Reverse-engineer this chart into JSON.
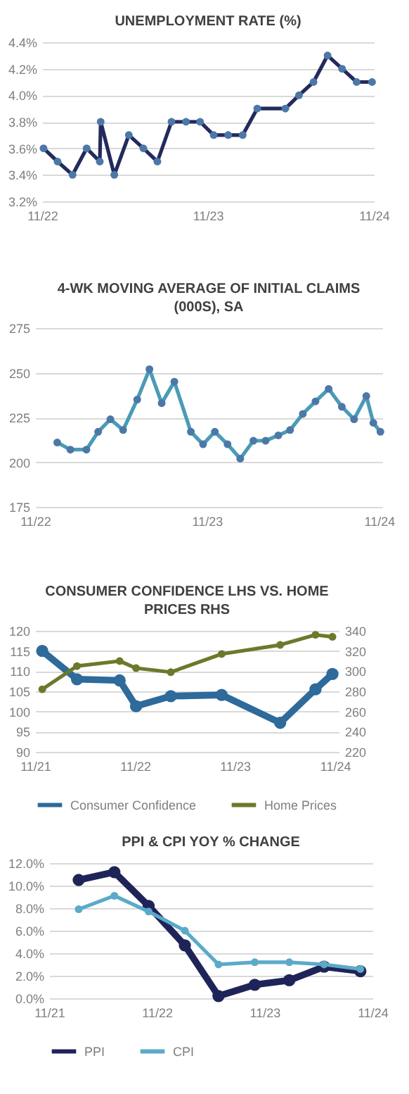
{
  "chart_data": [
    {
      "type": "line",
      "title": "UNEMPLOYMENT RATE (%)",
      "x": [
        "2022-11-04",
        "2022-12-05",
        "2023-01-07",
        "2023-02-07",
        "2023-03-08",
        "2023-03-10",
        "2023-04-09",
        "2023-05-11",
        "2023-06-12",
        "2023-07-13",
        "2023-08-13",
        "2023-09-14",
        "2023-10-15",
        "2023-11-14",
        "2023-12-16",
        "2024-01-17",
        "2024-02-18",
        "2024-04-20",
        "2024-05-20",
        "2024-06-21",
        "2024-07-22",
        "2024-08-23",
        "2024-09-24",
        "2024-10-28"
      ],
      "series": [
        {
          "color": "#232a5c",
          "values": [
            3.6,
            3.5,
            3.4,
            3.6,
            3.5,
            3.8,
            3.4,
            3.7,
            3.6,
            3.5,
            3.8,
            3.8,
            3.8,
            3.7,
            3.7,
            3.7,
            3.9,
            3.9,
            4.0,
            4.1,
            4.3,
            4.2,
            4.1,
            4.1
          ]
        }
      ],
      "xlim": [
        "2022-11-01",
        "2024-11-01"
      ],
      "xticks": [
        {
          "value": "2022-11-01",
          "label": "11/22"
        },
        {
          "value": "2023-11-01",
          "label": "11/23"
        },
        {
          "value": "2024-11-01",
          "label": "11/24"
        }
      ],
      "ylim": [
        3.2,
        4.4
      ],
      "yticks": [
        {
          "value": 3.2,
          "label": "3.2%"
        },
        {
          "value": 3.4,
          "label": "3.4%"
        },
        {
          "value": 3.6,
          "label": "3.6%"
        },
        {
          "value": 3.8,
          "label": "3.8%"
        },
        {
          "value": 4.0,
          "label": "4.0%"
        },
        {
          "value": 4.2,
          "label": "4.2%"
        },
        {
          "value": 4.4,
          "label": "4.4%"
        }
      ],
      "grid": "y",
      "marker": "circle"
    },
    {
      "type": "line",
      "title": "4-WK MOVING AVERAGE OF INITIAL CLAIMS (000S), SA",
      "x": [
        "2022-12-18",
        "2023-01-15",
        "2023-02-18",
        "2023-03-15",
        "2023-04-10",
        "2023-05-07",
        "2023-06-06",
        "2023-07-02",
        "2023-07-28",
        "2023-08-24",
        "2023-09-28",
        "2023-10-24",
        "2023-11-18",
        "2023-12-15",
        "2024-01-11",
        "2024-02-08",
        "2024-03-05",
        "2024-04-01",
        "2024-04-26",
        "2024-05-23",
        "2024-06-19",
        "2024-07-17",
        "2024-08-14",
        "2024-09-09",
        "2024-10-05",
        "2024-10-20",
        "2024-11-04"
      ],
      "series": [
        {
          "color": "#4a9bb5",
          "values": [
            211,
            207,
            207,
            217,
            224,
            218,
            235,
            252,
            233,
            245,
            217,
            210,
            217,
            210,
            202,
            212,
            212,
            215,
            218,
            227,
            234,
            241,
            231,
            224,
            237,
            222,
            217
          ]
        }
      ],
      "xlim": [
        "2022-11-01",
        "2024-11-08"
      ],
      "xticks": [
        {
          "value": "2022-11-01",
          "label": "11/22"
        },
        {
          "value": "2023-11-01",
          "label": "11/23"
        },
        {
          "value": "2024-11-01",
          "label": "11/24"
        }
      ],
      "ylim": [
        175,
        275
      ],
      "yticks": [
        175,
        200,
        225,
        250,
        275
      ],
      "grid": "y",
      "marker": "circle"
    },
    {
      "type": "line",
      "title": "CONSUMER CONFIDENCE LHS VS. HOME PRICES RHS",
      "x": [
        "2021-11-27",
        "2022-04-03",
        "2022-09-06",
        "2022-11-05",
        "2023-03-12",
        "2023-09-14",
        "2024-04-15",
        "2024-08-22",
        "2024-10-23"
      ],
      "series": [
        {
          "name": "Consumer Confidence",
          "color": "#2e6a9a",
          "values": [
            115,
            108,
            107.7,
            101.3,
            103.8,
            104.1,
            97.2,
            105.5,
            109.3
          ]
        },
        {
          "name": "Home Prices",
          "color": "#6b7a2a",
          "axis": "y2",
          "values": [
            282,
            305,
            310,
            303,
            299,
            317,
            326,
            336,
            334
          ]
        }
      ],
      "xlim": [
        "2021-11-01",
        "2024-11-15"
      ],
      "xticks": [
        {
          "value": "2021-11-01",
          "label": "11/21"
        },
        {
          "value": "2022-11-01",
          "label": "11/22"
        },
        {
          "value": "2023-11-01",
          "label": "11/23"
        },
        {
          "value": "2024-11-01",
          "label": "11/24"
        }
      ],
      "ylim": [
        90,
        120
      ],
      "yticks": [
        90,
        95,
        100,
        105,
        110,
        115,
        120
      ],
      "y2lim": [
        220,
        340
      ],
      "y2ticks": [
        220,
        240,
        260,
        280,
        300,
        320,
        340
      ],
      "grid": "y",
      "marker": "circle",
      "legend": "bottom"
    },
    {
      "type": "line",
      "title": "PPI & CPI YOY % CHANGE",
      "x": [
        "2022-02-09",
        "2022-06-10",
        "2022-10-04",
        "2023-02-04",
        "2023-05-29",
        "2023-09-29",
        "2024-01-24",
        "2024-05-21",
        "2024-09-21"
      ],
      "series": [
        {
          "name": "PPI",
          "color": "#1f2458",
          "values": [
            10.5,
            11.2,
            8.2,
            4.7,
            0.2,
            1.2,
            1.6,
            2.8,
            2.4
          ]
        },
        {
          "name": "CPI",
          "color": "#5aaac8",
          "values": [
            7.9,
            9.1,
            7.7,
            6.0,
            3.0,
            3.2,
            3.2,
            3.0,
            2.6
          ]
        }
      ],
      "xlim": [
        "2021-11-01",
        "2024-11-01"
      ],
      "xticks": [
        {
          "value": "2021-11-01",
          "label": "11/21"
        },
        {
          "value": "2022-11-01",
          "label": "11/22"
        },
        {
          "value": "2023-11-01",
          "label": "11/23"
        },
        {
          "value": "2024-11-01",
          "label": "11/24"
        }
      ],
      "ylim": [
        0,
        12
      ],
      "yticks": [
        {
          "value": 0,
          "label": "0.0%"
        },
        {
          "value": 2,
          "label": "2.0%"
        },
        {
          "value": 4,
          "label": "4.0%"
        },
        {
          "value": 6,
          "label": "6.0%"
        },
        {
          "value": 8,
          "label": "8.0%"
        },
        {
          "value": 10,
          "label": "10.0%"
        },
        {
          "value": 12,
          "label": "12.0%"
        }
      ],
      "grid": "y",
      "marker": "circle",
      "legend": "bottom"
    }
  ]
}
